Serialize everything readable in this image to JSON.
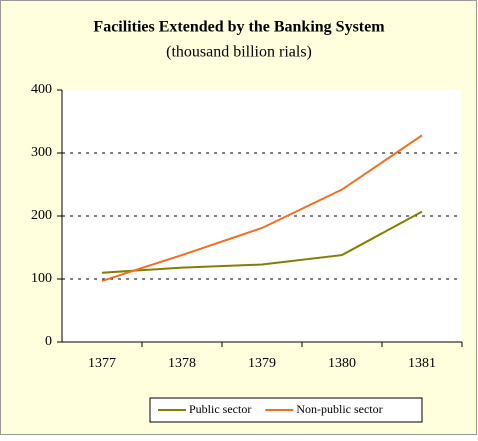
{
  "chart_data": {
    "type": "line",
    "title": "Facilities Extended by the Banking System",
    "subtitle": "(thousand billion rials)",
    "categories": [
      "1377",
      "1378",
      "1379",
      "1380",
      "1381"
    ],
    "series": [
      {
        "name": "Public sector",
        "color": "#808000",
        "values": [
          110,
          118,
          123,
          138,
          207
        ]
      },
      {
        "name": "Non-public sector",
        "color": "#f26f21",
        "values": [
          97,
          138,
          181,
          242,
          328
        ]
      }
    ],
    "ylim": [
      0,
      400
    ],
    "yticks": [
      0,
      100,
      200,
      300,
      400
    ],
    "grid": true,
    "legend": "bottom"
  }
}
